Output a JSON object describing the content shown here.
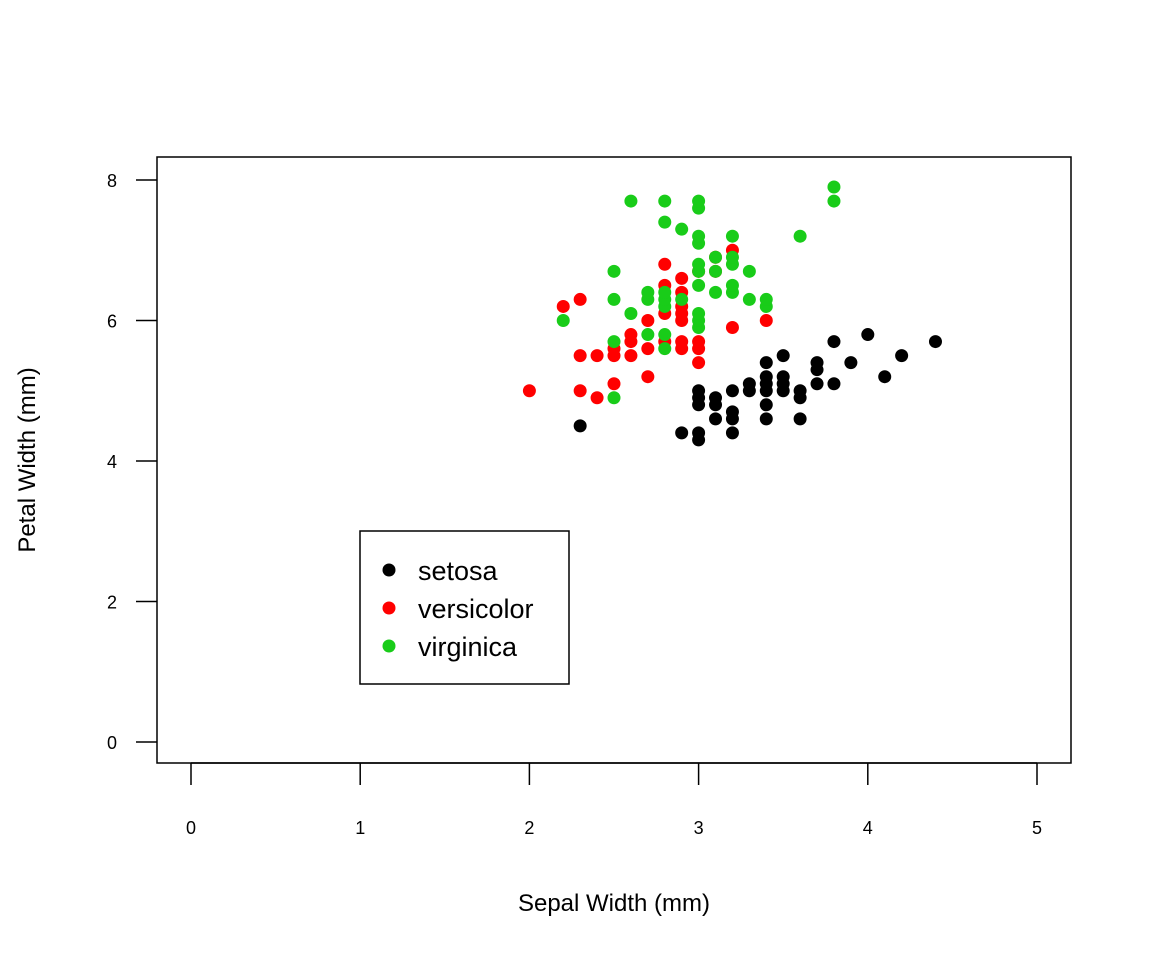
{
  "chart_data": {
    "type": "scatter",
    "title": "",
    "xlabel": "Sepal Width (mm)",
    "ylabel": "Petal Width (mm)",
    "xlim": [
      0,
      5
    ],
    "ylim": [
      0,
      8
    ],
    "x_ticks": [
      "0",
      "1",
      "2",
      "3",
      "4",
      "5"
    ],
    "y_ticks": [
      "0",
      "2",
      "4",
      "6",
      "8"
    ],
    "grid": false,
    "legend_position": "bottom-left",
    "series": [
      {
        "name": "setosa",
        "color": "#000000",
        "points": [
          [
            2.3,
            4.5
          ],
          [
            2.9,
            4.4
          ],
          [
            3.0,
            4.3
          ],
          [
            3.0,
            4.4
          ],
          [
            3.0,
            4.8
          ],
          [
            3.0,
            4.9
          ],
          [
            3.0,
            5.0
          ],
          [
            3.1,
            4.6
          ],
          [
            3.1,
            4.8
          ],
          [
            3.1,
            4.9
          ],
          [
            3.2,
            4.4
          ],
          [
            3.2,
            4.6
          ],
          [
            3.2,
            4.7
          ],
          [
            3.2,
            5.0
          ],
          [
            3.3,
            5.0
          ],
          [
            3.3,
            5.1
          ],
          [
            3.4,
            4.6
          ],
          [
            3.4,
            4.8
          ],
          [
            3.4,
            5.0
          ],
          [
            3.4,
            5.1
          ],
          [
            3.4,
            5.2
          ],
          [
            3.4,
            5.4
          ],
          [
            3.5,
            5.0
          ],
          [
            3.5,
            5.1
          ],
          [
            3.5,
            5.2
          ],
          [
            3.5,
            5.5
          ],
          [
            3.6,
            4.6
          ],
          [
            3.6,
            4.9
          ],
          [
            3.6,
            5.0
          ],
          [
            3.7,
            5.1
          ],
          [
            3.7,
            5.3
          ],
          [
            3.7,
            5.4
          ],
          [
            3.8,
            5.1
          ],
          [
            3.8,
            5.7
          ],
          [
            3.9,
            5.4
          ],
          [
            4.0,
            5.8
          ],
          [
            4.1,
            5.2
          ],
          [
            4.2,
            5.5
          ],
          [
            4.4,
            5.7
          ]
        ]
      },
      {
        "name": "versicolor",
        "color": "#ff0000",
        "points": [
          [
            2.0,
            5.0
          ],
          [
            2.2,
            6.2
          ],
          [
            2.3,
            5.0
          ],
          [
            2.3,
            5.5
          ],
          [
            2.3,
            6.3
          ],
          [
            2.4,
            4.9
          ],
          [
            2.4,
            5.5
          ],
          [
            2.5,
            5.1
          ],
          [
            2.5,
            5.5
          ],
          [
            2.5,
            5.6
          ],
          [
            2.6,
            5.5
          ],
          [
            2.6,
            5.7
          ],
          [
            2.6,
            5.8
          ],
          [
            2.7,
            5.2
          ],
          [
            2.7,
            5.6
          ],
          [
            2.7,
            6.0
          ],
          [
            2.8,
            5.7
          ],
          [
            2.8,
            6.1
          ],
          [
            2.8,
            6.5
          ],
          [
            2.8,
            6.8
          ],
          [
            2.9,
            5.6
          ],
          [
            2.9,
            5.7
          ],
          [
            2.9,
            6.0
          ],
          [
            2.9,
            6.1
          ],
          [
            2.9,
            6.2
          ],
          [
            2.9,
            6.4
          ],
          [
            2.9,
            6.6
          ],
          [
            3.0,
            5.4
          ],
          [
            3.0,
            5.6
          ],
          [
            3.0,
            5.7
          ],
          [
            3.0,
            6.7
          ],
          [
            3.1,
            6.7
          ],
          [
            3.1,
            6.9
          ],
          [
            3.2,
            5.9
          ],
          [
            3.2,
            7.0
          ],
          [
            3.4,
            6.0
          ]
        ]
      },
      {
        "name": "virginica",
        "color": "#19cc19",
        "points": [
          [
            2.2,
            6.0
          ],
          [
            2.5,
            4.9
          ],
          [
            2.5,
            5.7
          ],
          [
            2.5,
            6.3
          ],
          [
            2.5,
            6.7
          ],
          [
            2.6,
            6.1
          ],
          [
            2.6,
            7.7
          ],
          [
            2.7,
            5.8
          ],
          [
            2.7,
            6.3
          ],
          [
            2.7,
            6.4
          ],
          [
            2.8,
            5.6
          ],
          [
            2.8,
            5.8
          ],
          [
            2.8,
            6.2
          ],
          [
            2.8,
            6.3
          ],
          [
            2.8,
            6.4
          ],
          [
            2.8,
            7.4
          ],
          [
            2.8,
            7.7
          ],
          [
            2.9,
            6.3
          ],
          [
            2.9,
            7.3
          ],
          [
            3.0,
            5.9
          ],
          [
            3.0,
            6.0
          ],
          [
            3.0,
            6.1
          ],
          [
            3.0,
            6.5
          ],
          [
            3.0,
            6.7
          ],
          [
            3.0,
            6.8
          ],
          [
            3.0,
            7.1
          ],
          [
            3.0,
            7.2
          ],
          [
            3.0,
            7.6
          ],
          [
            3.0,
            7.7
          ],
          [
            3.1,
            6.4
          ],
          [
            3.1,
            6.7
          ],
          [
            3.1,
            6.9
          ],
          [
            3.2,
            6.4
          ],
          [
            3.2,
            6.5
          ],
          [
            3.2,
            6.8
          ],
          [
            3.2,
            6.9
          ],
          [
            3.2,
            7.2
          ],
          [
            3.3,
            6.3
          ],
          [
            3.3,
            6.7
          ],
          [
            3.4,
            6.2
          ],
          [
            3.4,
            6.3
          ],
          [
            3.6,
            7.2
          ],
          [
            3.8,
            7.7
          ],
          [
            3.8,
            7.9
          ]
        ]
      }
    ]
  }
}
